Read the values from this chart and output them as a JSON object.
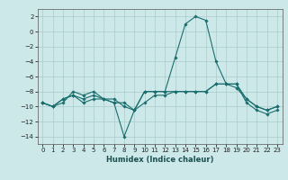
{
  "xlabel": "Humidex (Indice chaleur)",
  "background_color": "#cce8e8",
  "grid_color": "#aacccc",
  "line_color": "#1a6e6e",
  "xlim": [
    -0.5,
    23.5
  ],
  "ylim": [
    -15,
    3
  ],
  "yticks": [
    2,
    0,
    -2,
    -4,
    -6,
    -8,
    -10,
    -12,
    -14
  ],
  "xticks": [
    0,
    1,
    2,
    3,
    4,
    5,
    6,
    7,
    8,
    9,
    10,
    11,
    12,
    13,
    14,
    15,
    16,
    17,
    18,
    19,
    20,
    21,
    22,
    23
  ],
  "line1_x": [
    0,
    1,
    2,
    3,
    4,
    5,
    6,
    7,
    8,
    9,
    10,
    11,
    12,
    13,
    14,
    15,
    16,
    17,
    18,
    19,
    20,
    21,
    22,
    23
  ],
  "line1_y": [
    -9.5,
    -10,
    -9.5,
    -8,
    -8.5,
    -8,
    -9,
    -9.5,
    -14,
    -10.5,
    -8,
    -8,
    -8,
    -3.5,
    1,
    2,
    1.5,
    -4,
    -7,
    -7,
    -9.5,
    -10.5,
    -11,
    -10.5
  ],
  "line2_x": [
    0,
    1,
    2,
    3,
    4,
    5,
    6,
    7,
    8,
    9,
    10,
    11,
    12,
    13,
    14,
    15,
    16,
    17,
    18,
    19,
    20,
    21,
    22,
    23
  ],
  "line2_y": [
    -9.5,
    -10,
    -9,
    -8.5,
    -9,
    -8.5,
    -9,
    -9.5,
    -9.5,
    -10.5,
    -8,
    -8,
    -8,
    -8,
    -8,
    -8,
    -8,
    -7,
    -7,
    -7,
    -9,
    -10,
    -10.5,
    -10
  ],
  "line3_x": [
    0,
    1,
    2,
    3,
    4,
    5,
    6,
    7,
    8,
    9,
    10,
    11,
    12,
    13,
    14,
    15,
    16,
    17,
    18,
    19,
    20,
    21,
    22,
    23
  ],
  "line3_y": [
    -9.5,
    -10,
    -9,
    -8.5,
    -9.5,
    -9,
    -9,
    -9,
    -10,
    -10.5,
    -9.5,
    -8.5,
    -8.5,
    -8,
    -8,
    -8,
    -8,
    -7,
    -7,
    -7.5,
    -9,
    -10,
    -10.5,
    -10
  ]
}
